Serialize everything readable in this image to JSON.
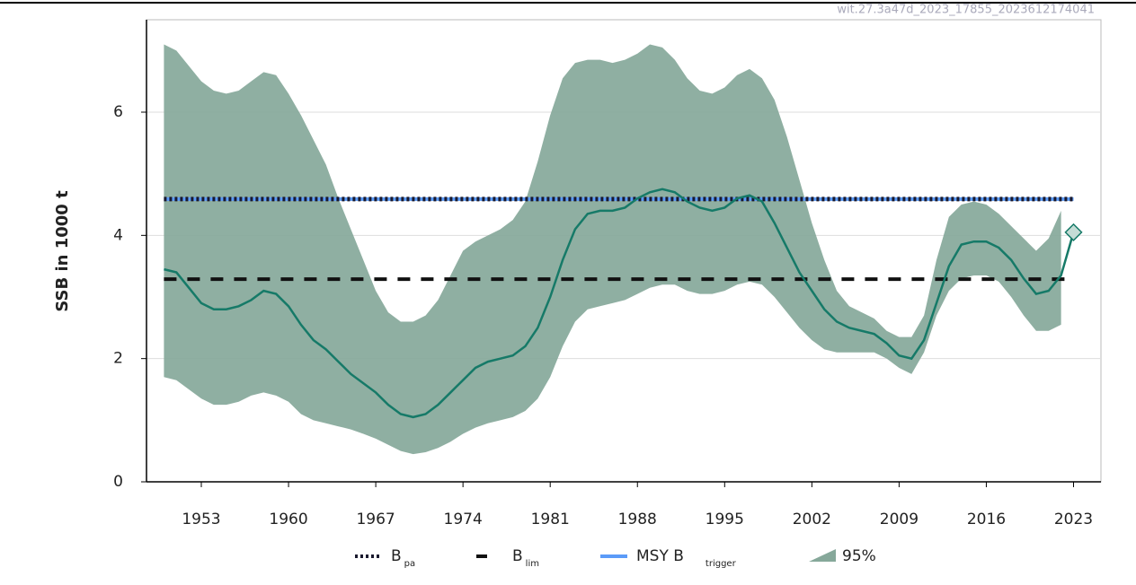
{
  "chart_data": {
    "type": "line",
    "watermark": "wit.27.3a47d_2023_17855_2023612174041",
    "y_label": "SSB in 1000 t",
    "x": [
      1950,
      1951,
      1952,
      1953,
      1954,
      1955,
      1956,
      1957,
      1958,
      1959,
      1960,
      1961,
      1962,
      1963,
      1964,
      1965,
      1966,
      1967,
      1968,
      1969,
      1970,
      1971,
      1972,
      1973,
      1974,
      1975,
      1976,
      1977,
      1978,
      1979,
      1980,
      1981,
      1982,
      1983,
      1984,
      1985,
      1986,
      1987,
      1988,
      1989,
      1990,
      1991,
      1992,
      1993,
      1994,
      1995,
      1996,
      1997,
      1998,
      1999,
      2000,
      2001,
      2002,
      2003,
      2004,
      2005,
      2006,
      2007,
      2008,
      2009,
      2010,
      2011,
      2012,
      2013,
      2014,
      2015,
      2016,
      2017,
      2018,
      2019,
      2020,
      2021,
      2022,
      2023
    ],
    "series": [
      {
        "color": "#167a68",
        "last_marker": "diamond",
        "values": [
          3.45,
          3.4,
          3.15,
          2.9,
          2.8,
          2.8,
          2.85,
          2.95,
          3.1,
          3.05,
          2.85,
          2.55,
          2.3,
          2.15,
          1.95,
          1.75,
          1.6,
          1.45,
          1.25,
          1.1,
          1.05,
          1.1,
          1.25,
          1.45,
          1.65,
          1.85,
          1.95,
          2.0,
          2.05,
          2.2,
          2.5,
          3.0,
          3.6,
          4.1,
          4.35,
          4.4,
          4.4,
          4.45,
          4.6,
          4.7,
          4.75,
          4.7,
          4.55,
          4.45,
          4.4,
          4.45,
          4.6,
          4.65,
          4.55,
          4.2,
          3.8,
          3.4,
          3.1,
          2.8,
          2.6,
          2.5,
          2.45,
          2.4,
          2.25,
          2.05,
          2.0,
          2.3,
          2.9,
          3.5,
          3.85,
          3.9,
          3.9,
          3.8,
          3.6,
          3.3,
          3.05,
          3.1,
          3.35,
          4.05
        ]
      }
    ],
    "band": {
      "label": "95%",
      "color": "#86a89a",
      "lower": [
        1.7,
        1.65,
        1.5,
        1.35,
        1.25,
        1.25,
        1.3,
        1.4,
        1.45,
        1.4,
        1.3,
        1.1,
        1.0,
        0.95,
        0.9,
        0.85,
        0.78,
        0.7,
        0.6,
        0.5,
        0.45,
        0.48,
        0.55,
        0.65,
        0.78,
        0.88,
        0.95,
        1.0,
        1.05,
        1.15,
        1.35,
        1.7,
        2.2,
        2.6,
        2.8,
        2.85,
        2.9,
        2.95,
        3.05,
        3.15,
        3.2,
        3.2,
        3.1,
        3.05,
        3.05,
        3.1,
        3.2,
        3.25,
        3.2,
        3.0,
        2.75,
        2.5,
        2.3,
        2.15,
        2.1,
        2.1,
        2.1,
        2.1,
        2.0,
        1.85,
        1.75,
        2.1,
        2.7,
        3.1,
        3.3,
        3.35,
        3.35,
        3.25,
        3.0,
        2.7,
        2.45,
        2.45,
        2.55,
        null
      ],
      "upper": [
        7.1,
        7.0,
        6.75,
        6.5,
        6.35,
        6.3,
        6.35,
        6.5,
        6.65,
        6.6,
        6.3,
        5.95,
        5.55,
        5.15,
        4.6,
        4.1,
        3.6,
        3.1,
        2.75,
        2.6,
        2.6,
        2.7,
        2.95,
        3.35,
        3.75,
        3.9,
        4.0,
        4.1,
        4.25,
        4.55,
        5.2,
        5.95,
        6.55,
        6.8,
        6.85,
        6.85,
        6.8,
        6.85,
        6.95,
        7.1,
        7.05,
        6.85,
        6.55,
        6.35,
        6.3,
        6.4,
        6.6,
        6.7,
        6.55,
        6.2,
        5.6,
        4.9,
        4.2,
        3.6,
        3.1,
        2.85,
        2.75,
        2.65,
        2.45,
        2.35,
        2.35,
        2.7,
        3.6,
        4.3,
        4.5,
        4.55,
        4.5,
        4.35,
        4.15,
        3.95,
        3.75,
        3.95,
        4.4,
        null
      ]
    },
    "reference_lines": [
      {
        "label": "MSY B",
        "sub": "trigger",
        "value": 4.59,
        "color": "#5b9bf8",
        "style": "solid"
      },
      {
        "label": "B",
        "sub": "pa",
        "value": 4.59,
        "color": "#1a1a2e",
        "style": "dotted"
      },
      {
        "label": "B",
        "sub": "lim",
        "value": 3.29,
        "color": "#111111",
        "style": "dashed"
      }
    ],
    "legend_order": [
      1,
      2,
      0
    ],
    "xlim": [
      1948.6,
      2025.2
    ],
    "ylim": [
      0,
      7.5
    ],
    "xticks": [
      1953,
      1960,
      1967,
      1974,
      1981,
      1988,
      1995,
      2002,
      2009,
      2016,
      2023
    ],
    "yticks": [
      0,
      2,
      4,
      6
    ],
    "grid": true
  }
}
